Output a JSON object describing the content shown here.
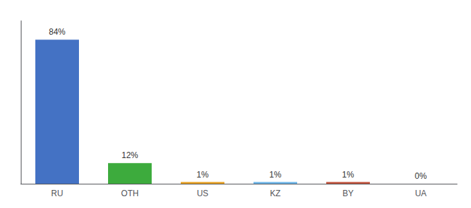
{
  "chart_data": {
    "type": "bar",
    "categories": [
      "RU",
      "OTH",
      "US",
      "KZ",
      "BY",
      "UA"
    ],
    "values": [
      84,
      12,
      1,
      1,
      1,
      0
    ],
    "value_labels": [
      "84%",
      "12%",
      "1%",
      "1%",
      "1%",
      "0%"
    ],
    "colors": [
      "#4472c4",
      "#3dab3d",
      "#e8a020",
      "#6ab4e8",
      "#c0513a",
      "#c0513a"
    ],
    "ylim": [
      0,
      95
    ],
    "data_labels": true,
    "tick_labels": "x",
    "grid": false
  }
}
